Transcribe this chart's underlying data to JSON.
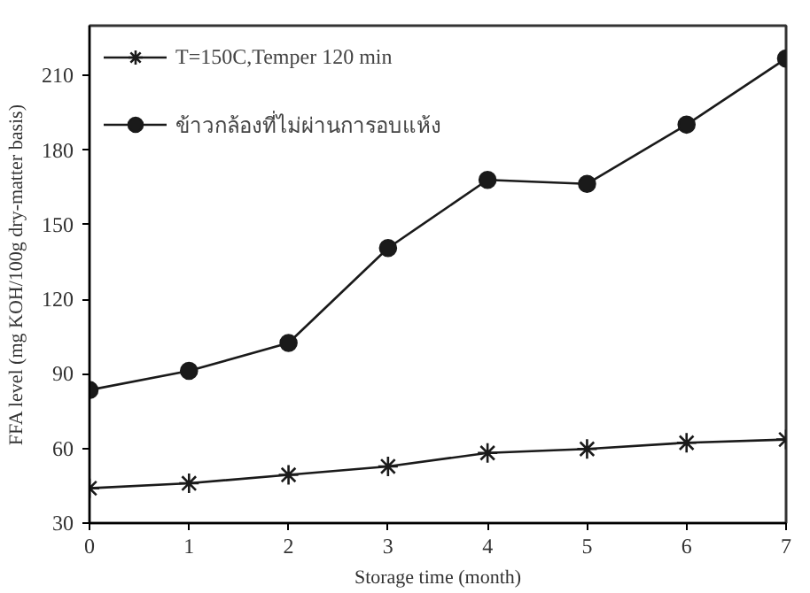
{
  "chart_data": {
    "type": "line",
    "xlabel": "Storage time (month)",
    "ylabel": "FFA level (mg KOH/100g dry-matter basis)",
    "x": [
      0,
      1,
      2,
      3,
      4,
      5,
      6,
      7
    ],
    "series": [
      {
        "name": "T=150C,Temper 120 min",
        "color": "#1a1a1a",
        "marker": "cross",
        "values": [
          44,
          46,
          49.4,
          52.8,
          58.2,
          59.8,
          62.3,
          63.6
        ]
      },
      {
        "name": "ข้าวกล้องที่ไม่ผ่านการอบแห้ง",
        "color": "#1a1a1a",
        "marker": "circle",
        "values": [
          83.5,
          91.2,
          102.4,
          140.6,
          168,
          166.4,
          190.2,
          216.8
        ]
      }
    ],
    "xlim": [
      0,
      7
    ],
    "xticks": [
      0,
      1,
      2,
      3,
      4,
      5,
      6,
      7
    ],
    "ylim": [
      30,
      230
    ],
    "yticks": [
      30,
      60,
      90,
      120,
      150,
      180,
      210
    ],
    "grid": false,
    "legend": "top left",
    "line_style": "solid"
  }
}
